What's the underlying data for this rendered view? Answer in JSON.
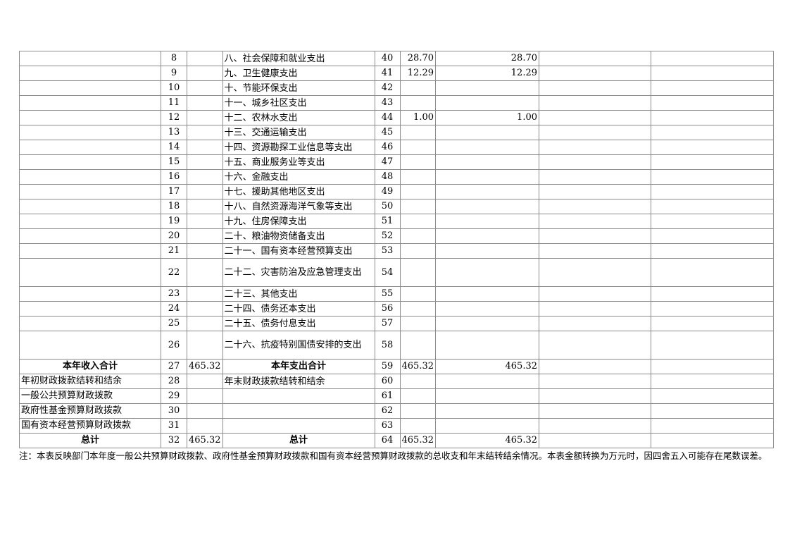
{
  "rows": [
    {
      "income_item": "",
      "no1": "8",
      "income_amt": "",
      "expense_item": "八、社会保障和就业支出",
      "no2": "40",
      "total": "28.70",
      "general": "28.70",
      "fund": "",
      "state": ""
    },
    {
      "income_item": "",
      "no1": "9",
      "income_amt": "",
      "expense_item": "九、卫生健康支出",
      "no2": "41",
      "total": "12.29",
      "general": "12.29",
      "fund": "",
      "state": ""
    },
    {
      "income_item": "",
      "no1": "10",
      "income_amt": "",
      "expense_item": "十、节能环保支出",
      "no2": "42",
      "total": "",
      "general": "",
      "fund": "",
      "state": ""
    },
    {
      "income_item": "",
      "no1": "11",
      "income_amt": "",
      "expense_item": "十一、城乡社区支出",
      "no2": "43",
      "total": "",
      "general": "",
      "fund": "",
      "state": ""
    },
    {
      "income_item": "",
      "no1": "12",
      "income_amt": "",
      "expense_item": "十二、农林水支出",
      "no2": "44",
      "total": "1.00",
      "general": "1.00",
      "fund": "",
      "state": ""
    },
    {
      "income_item": "",
      "no1": "13",
      "income_amt": "",
      "expense_item": "十三、交通运输支出",
      "no2": "45",
      "total": "",
      "general": "",
      "fund": "",
      "state": ""
    },
    {
      "income_item": "",
      "no1": "14",
      "income_amt": "",
      "expense_item": "十四、资源勘探工业信息等支出",
      "no2": "46",
      "total": "",
      "general": "",
      "fund": "",
      "state": ""
    },
    {
      "income_item": "",
      "no1": "15",
      "income_amt": "",
      "expense_item": "十五、商业服务业等支出",
      "no2": "47",
      "total": "",
      "general": "",
      "fund": "",
      "state": ""
    },
    {
      "income_item": "",
      "no1": "16",
      "income_amt": "",
      "expense_item": "十六、金融支出",
      "no2": "48",
      "total": "",
      "general": "",
      "fund": "",
      "state": ""
    },
    {
      "income_item": "",
      "no1": "17",
      "income_amt": "",
      "expense_item": "十七、援助其他地区支出",
      "no2": "49",
      "total": "",
      "general": "",
      "fund": "",
      "state": ""
    },
    {
      "income_item": "",
      "no1": "18",
      "income_amt": "",
      "expense_item": "十八、自然资源海洋气象等支出",
      "no2": "50",
      "total": "",
      "general": "",
      "fund": "",
      "state": ""
    },
    {
      "income_item": "",
      "no1": "19",
      "income_amt": "",
      "expense_item": "十九、住房保障支出",
      "no2": "51",
      "total": "",
      "general": "",
      "fund": "",
      "state": ""
    },
    {
      "income_item": "",
      "no1": "20",
      "income_amt": "",
      "expense_item": "二十、粮油物资储备支出",
      "no2": "52",
      "total": "",
      "general": "",
      "fund": "",
      "state": ""
    },
    {
      "income_item": "",
      "no1": "21",
      "income_amt": "",
      "expense_item": "二十一、国有资本经营预算支出",
      "no2": "53",
      "total": "",
      "general": "",
      "fund": "",
      "state": ""
    },
    {
      "income_item": "",
      "no1": "22",
      "income_amt": "",
      "expense_item": "二十二、灾害防治及应急管理支出",
      "no2": "54",
      "total": "",
      "general": "",
      "fund": "",
      "state": "",
      "tall": true
    },
    {
      "income_item": "",
      "no1": "23",
      "income_amt": "",
      "expense_item": "二十三、其他支出",
      "no2": "55",
      "total": "",
      "general": "",
      "fund": "",
      "state": ""
    },
    {
      "income_item": "",
      "no1": "24",
      "income_amt": "",
      "expense_item": "二十四、债务还本支出",
      "no2": "56",
      "total": "",
      "general": "",
      "fund": "",
      "state": ""
    },
    {
      "income_item": "",
      "no1": "25",
      "income_amt": "",
      "expense_item": "二十五、债务付息支出",
      "no2": "57",
      "total": "",
      "general": "",
      "fund": "",
      "state": ""
    },
    {
      "income_item": "",
      "no1": "26",
      "income_amt": "",
      "expense_item": "二十六、抗疫特别国债安排的支出",
      "no2": "58",
      "total": "",
      "general": "",
      "fund": "",
      "state": "",
      "tall": true
    },
    {
      "income_item": "本年收入合计",
      "no1": "27",
      "income_amt": "465.32",
      "expense_item": "本年支出合计",
      "no2": "59",
      "total": "465.32",
      "general": "465.32",
      "fund": "",
      "state": "",
      "bold": true
    },
    {
      "income_item": "年初财政拨款结转和结余",
      "no1": "28",
      "income_amt": "",
      "expense_item": "年末财政拨款结转和结余",
      "no2": "60",
      "total": "",
      "general": "",
      "fund": "",
      "state": ""
    },
    {
      "income_item": "一般公共预算财政拨款",
      "no1": "29",
      "income_amt": "",
      "expense_item": "",
      "no2": "61",
      "total": "",
      "general": "",
      "fund": "",
      "state": ""
    },
    {
      "income_item": "政府性基金预算财政拨款",
      "no1": "30",
      "income_amt": "",
      "expense_item": "",
      "no2": "62",
      "total": "",
      "general": "",
      "fund": "",
      "state": ""
    },
    {
      "income_item": "国有资本经营预算财政拨款",
      "no1": "31",
      "income_amt": "",
      "expense_item": "",
      "no2": "63",
      "total": "",
      "general": "",
      "fund": "",
      "state": ""
    },
    {
      "income_item": "总计",
      "no1": "32",
      "income_amt": "465.32",
      "expense_item": "总计",
      "no2": "64",
      "total": "465.32",
      "general": "465.32",
      "fund": "",
      "state": "",
      "bold": true
    }
  ],
  "note": "注：本表反映部门本年度一般公共预算财政拨款、政府性基金预算财政拨款和国有资本经营预算财政拨款的总收支和年末结转结余情况。本表金额转换为万元时，因四舍五入可能存在尾数误差。"
}
